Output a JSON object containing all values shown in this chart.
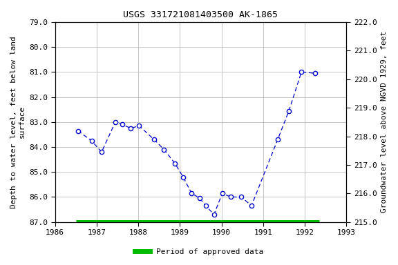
{
  "title": "USGS 331721081403500 AK-1865",
  "ylabel_left": "Depth to water level, feet below land\nsurface",
  "ylabel_right": "Groundwater level above NGVD 1929, feet",
  "xlim": [
    1986,
    1993
  ],
  "ylim_left_bottom": 87.0,
  "ylim_left_top": 79.0,
  "ylim_right_bottom": 215.0,
  "ylim_right_top": 222.0,
  "yticks_left": [
    79.0,
    80.0,
    81.0,
    82.0,
    83.0,
    84.0,
    85.0,
    86.0,
    87.0
  ],
  "yticks_right": [
    215.0,
    216.0,
    217.0,
    218.0,
    219.0,
    220.0,
    221.0,
    222.0
  ],
  "xticks": [
    1986,
    1987,
    1988,
    1989,
    1990,
    1991,
    1992,
    1993
  ],
  "data_x": [
    1986.55,
    1986.88,
    1987.12,
    1987.45,
    1987.62,
    1987.82,
    1988.02,
    1988.38,
    1988.62,
    1988.88,
    1989.08,
    1989.28,
    1989.48,
    1989.62,
    1989.82,
    1990.02,
    1990.22,
    1990.48,
    1990.72,
    1991.35,
    1991.62,
    1991.92,
    1992.25
  ],
  "data_y": [
    83.35,
    83.75,
    84.2,
    83.0,
    83.1,
    83.25,
    83.15,
    83.7,
    84.1,
    84.65,
    85.2,
    85.85,
    86.05,
    86.35,
    86.7,
    85.85,
    86.0,
    86.0,
    86.35,
    83.7,
    82.55,
    81.0,
    81.05
  ],
  "line_color": "#0000cc",
  "marker_facecolor": "#ffffff",
  "marker_edgecolor": "#0000cc",
  "approved_bar_xstart": 1986.5,
  "approved_bar_xend": 1992.35,
  "approved_bar_color": "#00bb00",
  "background_color": "#ffffff",
  "grid_color": "#bbbbbb",
  "title_fontsize": 9.5,
  "axis_label_fontsize": 8,
  "tick_fontsize": 8,
  "legend_fontsize": 8
}
